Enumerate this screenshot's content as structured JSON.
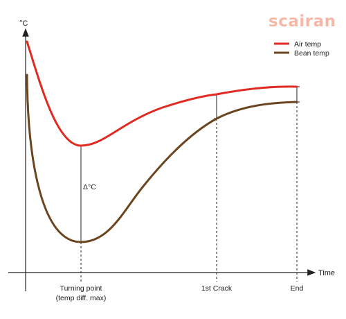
{
  "brand": {
    "logo_text": "scairan",
    "color": "#f6b8a6"
  },
  "chart_data": {
    "type": "line",
    "xlabel": "Time",
    "ylabel": "°C",
    "grid": false,
    "legend_position": "top-right",
    "x_markers": [
      {
        "key": "turning",
        "label_lines": [
          "Turning point",
          "(temp diff. max)"
        ]
      },
      {
        "key": "crack",
        "label_lines": [
          "1st Crack"
        ]
      },
      {
        "key": "end",
        "label_lines": [
          "End"
        ]
      }
    ],
    "delta_label": "Δ°C",
    "series": [
      {
        "name": "Air temp",
        "color": "#e02a22"
      },
      {
        "name": "Bean temp",
        "color": "#6b4520"
      }
    ]
  }
}
